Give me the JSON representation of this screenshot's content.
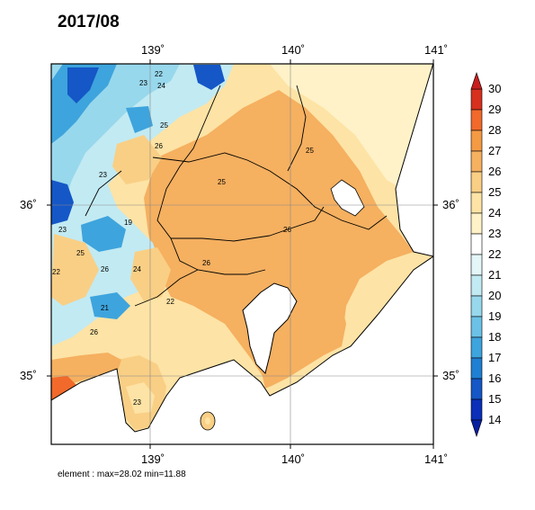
{
  "title": "2017/08",
  "footer": "element : max=28.02 min=11.88",
  "axes": {
    "lon_ticks": [
      "139˚",
      "140˚",
      "141˚"
    ],
    "lat_ticks": [
      "36˚",
      "35˚"
    ]
  },
  "colorbar": {
    "labels": [
      "30",
      "29",
      "28",
      "27",
      "26",
      "25",
      "24",
      "23",
      "22",
      "21",
      "20",
      "19",
      "18",
      "17",
      "16",
      "15",
      "14"
    ],
    "colors": [
      "#d7301f",
      "#f16a2b",
      "#f59a44",
      "#f5b060",
      "#f9cf85",
      "#fde3a5",
      "#fff2c8",
      "#ffffff",
      "#e4f6f8",
      "#c2eaf2",
      "#98d8ec",
      "#6cc2e6",
      "#3ea4dd",
      "#1f7fd2",
      "#1557c6",
      "#0b2fb8"
    ],
    "over_color": "#c81e1e",
    "under_color": "#0a1fa0"
  },
  "map_labels": [
    "22",
    "23",
    "24",
    "25",
    "26",
    "23",
    "19",
    "25",
    "26",
    "24",
    "22",
    "26",
    "25",
    "26",
    "23",
    "21",
    "22",
    "25",
    "26",
    "23"
  ],
  "colors": {
    "warm_fill": "#f5b060",
    "mid_fill": "#f9cf85",
    "light_fill": "#fde3a5",
    "sea": "#ffffff",
    "cool_fill": "#98d8ec",
    "cold_fill": "#3ea4dd",
    "deep_cold": "#1557c6"
  }
}
